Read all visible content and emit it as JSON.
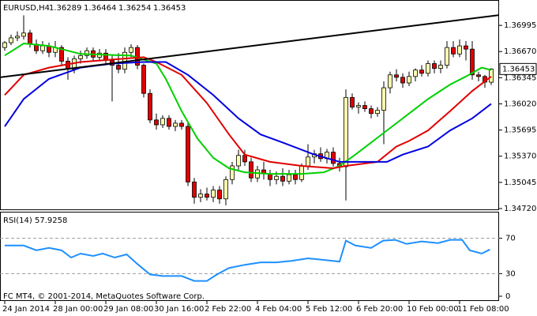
{
  "chart_data": [
    {
      "type": "candlestick",
      "title": "EURUSD,H4",
      "categories": [
        "24 Jan 2014",
        null,
        null,
        null,
        null,
        null,
        null,
        null,
        "28 Jan 00:00",
        null,
        null,
        null,
        null,
        null,
        null,
        null,
        "29 Jan 08:00",
        null,
        null,
        null,
        null,
        null,
        null,
        null,
        "30 Jan 16:00",
        null,
        null,
        null,
        null,
        null,
        null,
        null,
        "2 Feb 22:00",
        null,
        null,
        null,
        null,
        null,
        null,
        null,
        "4 Feb 04:00",
        null,
        null,
        null,
        null,
        null,
        null,
        null,
        "5 Feb 12:00",
        null,
        null,
        null,
        null,
        null,
        null,
        null,
        "6 Feb 20:00",
        null,
        null,
        null,
        null,
        null,
        null,
        null,
        "10 Feb 00:00",
        null,
        null,
        null,
        null,
        null,
        null,
        null,
        "11 Feb 08:00",
        null,
        null,
        null,
        null,
        null
      ],
      "open": [
        1.3672,
        1.3678,
        1.3684,
        1.3686,
        1.369,
        1.3676,
        1.3668,
        1.3674,
        1.3666,
        1.3672,
        1.3655,
        1.3645,
        1.3658,
        1.3662,
        1.3668,
        1.366,
        1.3665,
        1.3656,
        1.365,
        1.3645,
        1.3666,
        1.3672,
        1.365,
        1.3615,
        1.3582,
        1.3576,
        1.3584,
        1.3574,
        1.3578,
        1.3574,
        1.3505,
        1.3486,
        1.349,
        1.3486,
        1.3495,
        1.3484,
        1.3508,
        1.3525,
        1.3538,
        1.353,
        1.351,
        1.352,
        1.3515,
        1.3508,
        1.3512,
        1.3506,
        1.3514,
        1.3508,
        1.3525,
        1.3536,
        1.354,
        1.3534,
        1.3542,
        1.3528,
        1.3524,
        1.361,
        1.3598,
        1.36,
        1.3596,
        1.359,
        1.3594,
        1.3622,
        1.3638,
        1.3635,
        1.3628,
        1.3636,
        1.3644,
        1.364,
        1.3652,
        1.3646,
        1.365,
        1.3672,
        1.3664,
        1.3674,
        1.367,
        1.3638,
        1.3636,
        1.36289
      ],
      "high": [
        1.368,
        1.3688,
        1.3692,
        1.3712,
        1.3694,
        1.3682,
        1.368,
        1.3678,
        1.368,
        1.3675,
        1.366,
        1.3662,
        1.3668,
        1.3672,
        1.3672,
        1.367,
        1.367,
        1.3662,
        1.3665,
        1.3672,
        1.3676,
        1.3675,
        1.3652,
        1.362,
        1.359,
        1.3588,
        1.3588,
        1.3582,
        1.3582,
        1.3578,
        1.351,
        1.3496,
        1.3498,
        1.35,
        1.35,
        1.3512,
        1.353,
        1.3545,
        1.3545,
        1.3535,
        1.3525,
        1.353,
        1.352,
        1.3518,
        1.3522,
        1.352,
        1.352,
        1.3528,
        1.3552,
        1.3545,
        1.3548,
        1.3546,
        1.3548,
        1.3535,
        1.362,
        1.3615,
        1.3604,
        1.3605,
        1.36,
        1.3598,
        1.363,
        1.3642,
        1.3645,
        1.364,
        1.3642,
        1.3646,
        1.365,
        1.3656,
        1.3656,
        1.3656,
        1.368,
        1.368,
        1.3682,
        1.368,
        1.368,
        1.3642,
        1.3638,
        1.36464
      ],
      "low": [
        1.3668,
        1.3675,
        1.368,
        1.3682,
        1.3672,
        1.3664,
        1.3664,
        1.366,
        1.366,
        1.365,
        1.3632,
        1.364,
        1.3652,
        1.3658,
        1.3656,
        1.3655,
        1.3652,
        1.3605,
        1.364,
        1.364,
        1.366,
        1.3645,
        1.361,
        1.3578,
        1.357,
        1.3572,
        1.357,
        1.3568,
        1.357,
        1.35,
        1.3478,
        1.348,
        1.3482,
        1.348,
        1.3478,
        1.3476,
        1.3502,
        1.352,
        1.3525,
        1.3505,
        1.3505,
        1.3508,
        1.35,
        1.3502,
        1.35,
        1.3502,
        1.3502,
        1.3505,
        1.352,
        1.3528,
        1.353,
        1.3528,
        1.3524,
        1.3518,
        1.3482,
        1.3595,
        1.359,
        1.3592,
        1.3584,
        1.3586,
        1.3552,
        1.3615,
        1.363,
        1.3622,
        1.3624,
        1.363,
        1.3636,
        1.3636,
        1.364,
        1.364,
        1.3646,
        1.366,
        1.366,
        1.3656,
        1.3632,
        1.363,
        1.3622,
        1.36254
      ],
      "close": [
        1.3678,
        1.3684,
        1.3686,
        1.369,
        1.3676,
        1.3668,
        1.3674,
        1.3666,
        1.3672,
        1.3655,
        1.3645,
        1.3658,
        1.3662,
        1.3668,
        1.366,
        1.3665,
        1.3656,
        1.365,
        1.3645,
        1.3666,
        1.3672,
        1.365,
        1.3615,
        1.3582,
        1.3576,
        1.3584,
        1.3574,
        1.3578,
        1.3574,
        1.3505,
        1.3486,
        1.349,
        1.3486,
        1.3495,
        1.3484,
        1.3508,
        1.3525,
        1.3538,
        1.353,
        1.351,
        1.352,
        1.3515,
        1.3508,
        1.3512,
        1.3506,
        1.3514,
        1.3508,
        1.3525,
        1.3536,
        1.354,
        1.3534,
        1.3542,
        1.3528,
        1.3524,
        1.361,
        1.3598,
        1.36,
        1.3596,
        1.359,
        1.3594,
        1.3622,
        1.3638,
        1.3635,
        1.3628,
        1.3636,
        1.3644,
        1.364,
        1.3652,
        1.3646,
        1.365,
        1.3672,
        1.3664,
        1.3674,
        1.367,
        1.3638,
        1.3636,
        1.3629,
        1.36453
      ],
      "up_color": "#ffffb0",
      "down_color": "#e00000",
      "wick_color": "#000000",
      "series": [
        {
          "color": "#00d000",
          "x": [
            0,
            3,
            7,
            12,
            20,
            24,
            25.5,
            28,
            30.5,
            33,
            35.5,
            38,
            42,
            47,
            50.5,
            53,
            55.5,
            58,
            60.5,
            63,
            67,
            70.5,
            73,
            75.5,
            77
          ],
          "values": [
            1.3662,
            1.3677,
            1.3674,
            1.3664,
            1.3662,
            1.3652,
            1.3633,
            1.3593,
            1.3559,
            1.3535,
            1.3522,
            1.3517,
            1.3515,
            1.3515,
            1.3517,
            1.3525,
            1.3539,
            1.3554,
            1.3569,
            1.3584,
            1.3608,
            1.3626,
            1.3636,
            1.3647,
            1.3644
          ]
        },
        {
          "color": "#e00000",
          "x": [
            0,
            3,
            7,
            12,
            17,
            22,
            24,
            28,
            32,
            35.5,
            38,
            42,
            47,
            52,
            54,
            59,
            62,
            64,
            67,
            70.5,
            74,
            77
          ],
          "values": [
            1.3613,
            1.3638,
            1.3647,
            1.3654,
            1.3657,
            1.366,
            1.3654,
            1.3638,
            1.3603,
            1.3564,
            1.3539,
            1.353,
            1.3525,
            1.3522,
            1.3525,
            1.353,
            1.3549,
            1.3556,
            1.3569,
            1.3593,
            1.3618,
            1.3636
          ]
        },
        {
          "color": "#0000e0",
          "x": [
            0,
            3,
            7,
            12,
            17,
            22,
            25.5,
            29,
            33,
            37,
            40.5,
            44,
            49,
            53,
            57,
            60.5,
            63,
            67,
            70.5,
            74,
            77
          ],
          "values": [
            1.3574,
            1.3608,
            1.3633,
            1.3647,
            1.3652,
            1.3654,
            1.3654,
            1.3638,
            1.3613,
            1.3584,
            1.3564,
            1.3554,
            1.3539,
            1.353,
            1.353,
            1.353,
            1.3539,
            1.3549,
            1.3569,
            1.3584,
            1.3602
          ]
        },
        {
          "color": "#000000",
          "x": [
            -0.75,
            79
          ],
          "values": [
            1.3635,
            1.3713
          ]
        }
      ],
      "ylim": [
        1.3471,
        1.3731
      ],
      "yticks": [
        1.36995,
        {
          "value": 1.3667,
          "label": "1.36670"
        },
        1.36345,
        {
          "value": 1.3602,
          "label": "1.36020"
        },
        1.35695,
        {
          "value": 1.3537,
          "label": "1.35370"
        },
        1.35045,
        {
          "value": 1.3472,
          "label": "1.34720"
        }
      ],
      "last_price": 1.36453
    },
    {
      "type": "line",
      "title": "RSI(14) 57.9258",
      "color": "#1e90ff",
      "x": [
        0,
        3,
        5,
        7,
        9,
        10.5,
        12,
        14,
        15.5,
        17.4,
        19.3,
        21,
        23,
        25,
        28,
        30,
        32,
        33.6,
        35.5,
        38,
        40.5,
        43,
        45.5,
        48,
        50.5,
        53,
        54,
        55.5,
        58,
        59.9,
        61.8,
        63.6,
        66,
        68.6,
        70.5,
        72.4,
        73.6,
        75.5,
        76.8
      ],
      "values": [
        61.8,
        61.8,
        56.4,
        59.1,
        56.4,
        48.2,
        52.7,
        50,
        52.7,
        48.2,
        51.8,
        40.9,
        29.1,
        27.3,
        27.3,
        21.8,
        21.8,
        29.1,
        36.4,
        40,
        42.7,
        42.7,
        44.5,
        47.3,
        45.5,
        43.6,
        67.3,
        61.8,
        59.1,
        67.3,
        68.2,
        63.6,
        66.4,
        64.5,
        68.2,
        68.2,
        56.4,
        52.7,
        57.3
      ],
      "ylim": [
        0,
        100
      ],
      "yticks": [
        0,
        30,
        70
      ],
      "levels": [
        30,
        70
      ],
      "annotation": "FC MT4, © 2001-2014, MetaQuotes Software Corp."
    }
  ]
}
